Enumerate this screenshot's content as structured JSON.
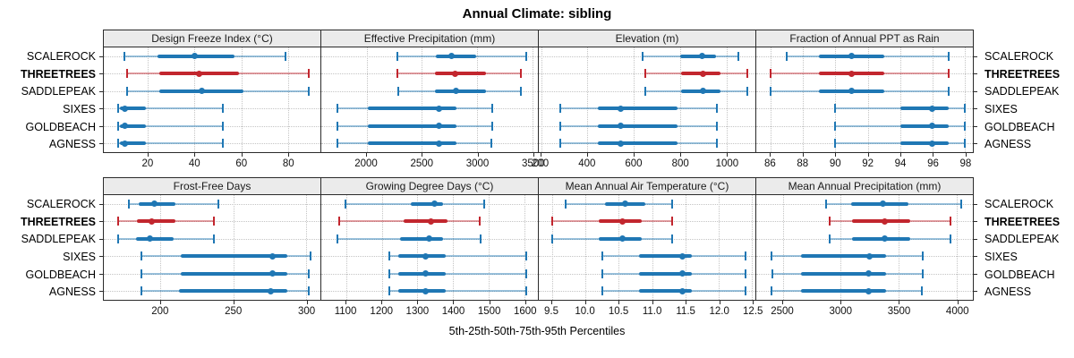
{
  "title": "Annual Climate: sibling",
  "xlabel": "5th-25th-50th-75th-95th Percentiles",
  "categories": [
    "SCALEROCK",
    "THREETREES",
    "SADDLEPEAK",
    "SIXES",
    "GOLDBEACH",
    "AGNESS"
  ],
  "highlight_category": "THREETREES",
  "colors": {
    "blue": "#1F77B4",
    "blue_light": "rgba(31,119,180,0.45)",
    "red": "#C2262E",
    "red_light": "rgba(194,38,46,0.45)",
    "header_bg": "#EBEBEB",
    "grid": "#C4C4C4",
    "border": "#2B2B2B"
  },
  "chart_data": {
    "type": "scatter",
    "subtype": "horizontal-percentile-interval-dotplot",
    "percentiles": [
      "5th",
      "25th",
      "50th",
      "75th",
      "95th"
    ],
    "grid": "dotted",
    "blocks": [
      {
        "panels": [
          {
            "title": "Design Freeze Index (°C)",
            "xlim": [
              1,
              94
            ],
            "ticks": [
              20,
              40,
              60,
              80
            ],
            "tick_labels": [
              "20",
              "40",
              "60",
              "80"
            ],
            "values": [
              [
                10,
                24,
                40,
                57,
                79
              ],
              [
                11,
                25,
                42,
                59,
                89
              ],
              [
                11,
                25,
                43,
                61,
                89
              ],
              [
                7,
                8,
                10,
                19,
                52
              ],
              [
                7,
                8,
                10,
                19,
                52
              ],
              [
                7,
                8,
                10,
                19,
                52
              ]
            ]
          },
          {
            "title": "Effective Precipitation (mm)",
            "xlim": [
              1590,
              3550
            ],
            "ticks": [
              2000,
              2500,
              3000,
              3500
            ],
            "tick_labels": [
              "2000",
              "2500",
              "3000",
              "3500"
            ],
            "values": [
              [
                2275,
                2630,
                2770,
                2990,
                3445
              ],
              [
                2280,
                2615,
                2800,
                3080,
                3400
              ],
              [
                2290,
                2620,
                2805,
                3080,
                3400
              ],
              [
                1735,
                2010,
                2655,
                2810,
                3135
              ],
              [
                1735,
                2010,
                2655,
                2810,
                3135
              ],
              [
                1733,
                2010,
                2655,
                2810,
                3125
              ]
            ]
          },
          {
            "title": "Elevation (m)",
            "xlim": [
              190,
              1125
            ],
            "ticks": [
              200,
              400,
              600,
              800,
              1000
            ],
            "tick_labels": [
              "200",
              "400",
              "600",
              "800",
              "1000"
            ],
            "values": [
              [
                640,
                800,
                895,
                955,
                1050
              ],
              [
                650,
                805,
                900,
                975,
                1090
              ],
              [
                650,
                805,
                900,
                975,
                1090
              ],
              [
                283,
                445,
                543,
                790,
                960
              ],
              [
                283,
                445,
                543,
                790,
                960
              ],
              [
                283,
                445,
                543,
                790,
                960
              ]
            ]
          },
          {
            "title": "Fraction of Annual PPT as Rain",
            "xlim": [
              85.1,
              98.5
            ],
            "ticks": [
              86,
              88,
              90,
              92,
              94,
              96,
              98
            ],
            "tick_labels": [
              "86",
              "88",
              "90",
              "92",
              "94",
              "96",
              "98"
            ],
            "values": [
              [
                87,
                89,
                91,
                93,
                97
              ],
              [
                86,
                89,
                91,
                93,
                97
              ],
              [
                86,
                89,
                91,
                93,
                97
              ],
              [
                90,
                94,
                96,
                97,
                98
              ],
              [
                90,
                94,
                96,
                97,
                98
              ],
              [
                90,
                94,
                96,
                97,
                98
              ]
            ]
          }
        ]
      },
      {
        "panels": [
          {
            "title": "Frost-Free Days",
            "xlim": [
              161,
              310
            ],
            "ticks": [
              200,
              250,
              300
            ],
            "tick_labels": [
              "200",
              "250",
              "300"
            ],
            "values": [
              [
                178,
                185,
                196,
                210,
                240
              ],
              [
                171,
                184,
                194,
                210,
                237
              ],
              [
                171,
                183,
                193,
                209,
                237
              ],
              [
                187,
                214,
                277,
                287,
                303
              ],
              [
                187,
                214,
                277,
                287,
                302
              ],
              [
                187,
                213,
                276,
                287,
                302
              ]
            ]
          },
          {
            "title": "Growing Degree Days (°C)",
            "xlim": [
              1030,
              1638
            ],
            "ticks": [
              1100,
              1200,
              1300,
              1400,
              1500,
              1600
            ],
            "tick_labels": [
              "1100",
              "1200",
              "1300",
              "1400",
              "1500",
              "1600"
            ],
            "values": [
              [
                1098,
                1280,
                1347,
                1372,
                1488
              ],
              [
                1080,
                1260,
                1337,
                1385,
                1475
              ],
              [
                1075,
                1252,
                1333,
                1372,
                1477
              ],
              [
                1222,
                1247,
                1322,
                1380,
                1605
              ],
              [
                1222,
                1247,
                1322,
                1380,
                1605
              ],
              [
                1220,
                1247,
                1322,
                1380,
                1605
              ]
            ]
          },
          {
            "title": "Mean Annual Air Temperature (°C)",
            "xlim": [
              9.3,
              12.55
            ],
            "ticks": [
              9.5,
              10.0,
              10.5,
              11.0,
              11.5,
              12.0,
              12.5
            ],
            "tick_labels": [
              "9.5",
              "10.0",
              "10.5",
              "11.0",
              "11.5",
              "12.0",
              "12.5"
            ],
            "values": [
              [
                9.7,
                10.3,
                10.6,
                10.9,
                11.3
              ],
              [
                9.5,
                10.2,
                10.55,
                10.85,
                11.3
              ],
              [
                9.5,
                10.2,
                10.55,
                10.85,
                11.3
              ],
              [
                10.25,
                10.8,
                11.45,
                11.6,
                12.4
              ],
              [
                10.25,
                10.8,
                11.45,
                11.6,
                12.4
              ],
              [
                10.25,
                10.8,
                11.45,
                11.6,
                12.4
              ]
            ]
          },
          {
            "title": "Mean Annual Precipitation (mm)",
            "xlim": [
              2270,
              4140
            ],
            "ticks": [
              2500,
              3000,
              3500,
              4000
            ],
            "tick_labels": [
              "2500",
              "3000",
              "3500",
              "4000"
            ],
            "values": [
              [
                2870,
                3090,
                3360,
                3580,
                4040
              ],
              [
                2905,
                3100,
                3375,
                3600,
                3950
              ],
              [
                2905,
                3100,
                3380,
                3600,
                3950
              ],
              [
                2400,
                2655,
                3245,
                3390,
                3705
              ],
              [
                2410,
                2660,
                3240,
                3390,
                3705
              ],
              [
                2400,
                2660,
                3240,
                3390,
                3700
              ]
            ]
          }
        ]
      }
    ]
  }
}
